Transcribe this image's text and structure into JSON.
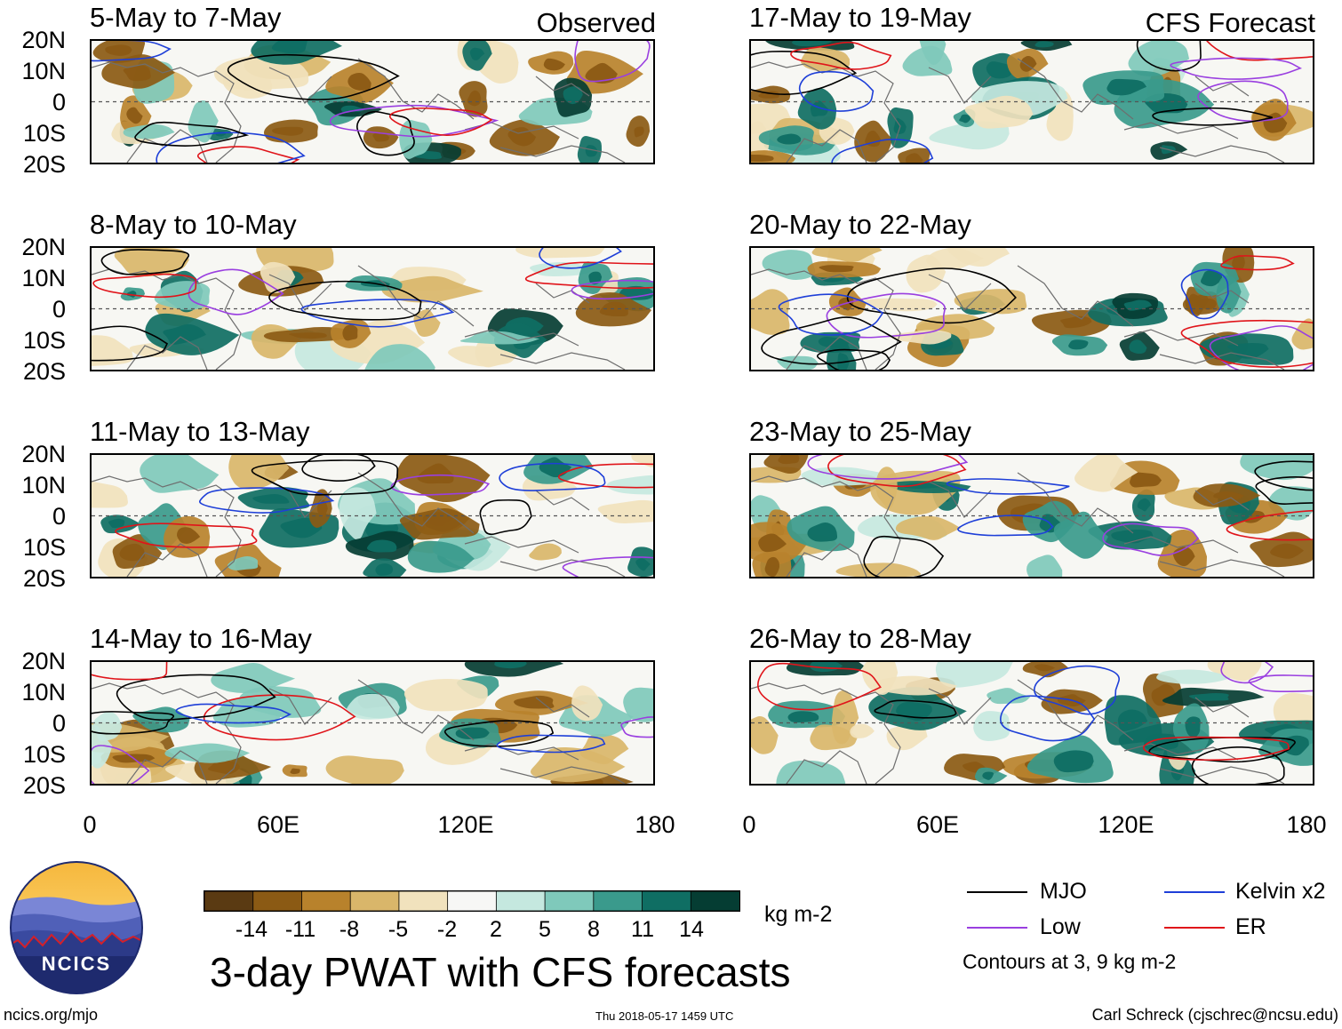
{
  "header": {
    "observed_label": "Observed",
    "forecast_label": "CFS Forecast"
  },
  "panels": [
    {
      "title": "5-May to 7-May"
    },
    {
      "title": "8-May to 10-May"
    },
    {
      "title": "11-May to 13-May"
    },
    {
      "title": "14-May to 16-May"
    },
    {
      "title": "17-May to 19-May"
    },
    {
      "title": "20-May to 22-May"
    },
    {
      "title": "23-May to 25-May"
    },
    {
      "title": "26-May to 28-May"
    }
  ],
  "axes": {
    "lat_labels": [
      "20N",
      "10N",
      "0",
      "10S",
      "20S"
    ],
    "lon_labels": [
      "0",
      "60E",
      "120E",
      "180"
    ]
  },
  "colorbar": {
    "unit": "kg m-2",
    "tick_labels": [
      "-14",
      "-11",
      "-8",
      "-5",
      "-2",
      "2",
      "5",
      "8",
      "11",
      "14"
    ],
    "colors": [
      "#5a3a12",
      "#8b5a14",
      "#b8822c",
      "#d9b66a",
      "#f1e2bd",
      "#f7f7f5",
      "#c5e8df",
      "#7fc9bb",
      "#3a9a8c",
      "#0f6e63",
      "#053d33"
    ]
  },
  "legend": {
    "items": [
      {
        "label": "MJO",
        "color": "#000000"
      },
      {
        "label": "Kelvin x2",
        "color": "#1e3fd8"
      },
      {
        "label": "Low",
        "color": "#9a3fe0"
      },
      {
        "label": "ER",
        "color": "#e0141a"
      }
    ],
    "contours_note": "Contours at 3, 9 kg m-2"
  },
  "main_title": "3-day PWAT with CFS forecasts",
  "logo": {
    "text": "NCICS"
  },
  "footer": {
    "url": "ncics.org/mjo",
    "timestamp": "Thu 2018-05-17 1459 UTC",
    "credit": "Carl Schreck (cjschrec@ncsu.edu)"
  }
}
